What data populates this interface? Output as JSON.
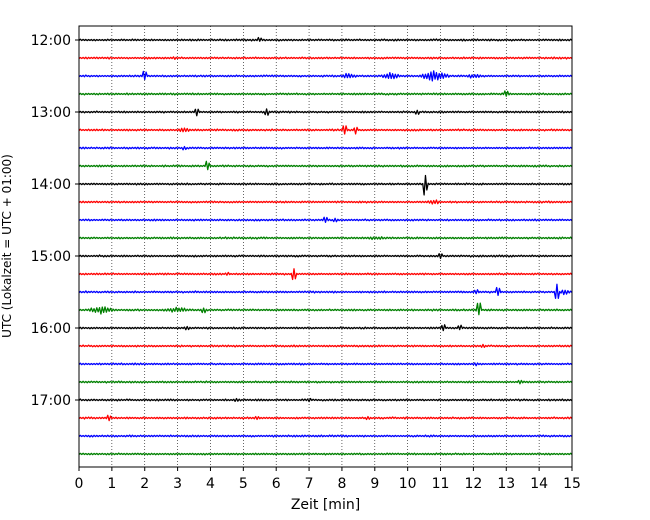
{
  "chart_data": {
    "type": "line",
    "title": "",
    "xlabel": "Zeit  [min]",
    "ylabel": "UTC (Lokalzeit = UTC + 01:00)",
    "xlim": [
      0,
      15
    ],
    "x_ticks": [
      0,
      1,
      2,
      3,
      4,
      5,
      6,
      7,
      8,
      9,
      10,
      11,
      12,
      13,
      14,
      15
    ],
    "y_tick_labels": [
      "12:00",
      "13:00",
      "14:00",
      "15:00",
      "16:00",
      "17:00"
    ],
    "grid": "vertical dotted lines at each minute",
    "trace_interval_minutes": 15,
    "color_cycle": [
      "#000000",
      "#ff0000",
      "#0000ff",
      "#008000"
    ],
    "series": [
      {
        "start": "12:00",
        "color": "black",
        "events": [
          {
            "t": 5.5,
            "amp": 0.35
          }
        ]
      },
      {
        "start": "12:15",
        "color": "red",
        "events": [
          {
            "t": 2.9,
            "amp": 0.2
          }
        ]
      },
      {
        "start": "12:30",
        "color": "blue",
        "events": [
          {
            "t": 2.0,
            "amp": 0.9
          },
          {
            "t": 8.2,
            "amp": 0.4,
            "dur": 0.8
          },
          {
            "t": 9.5,
            "amp": 0.6,
            "dur": 0.8
          },
          {
            "t": 10.8,
            "amp": 0.8,
            "dur": 1.2
          },
          {
            "t": 12.0,
            "amp": 0.35,
            "dur": 0.8
          }
        ]
      },
      {
        "start": "12:45",
        "color": "green",
        "events": [
          {
            "t": 13.0,
            "amp": 0.5
          }
        ]
      },
      {
        "start": "13:00",
        "color": "black",
        "events": [
          {
            "t": 3.6,
            "amp": 0.5
          },
          {
            "t": 5.7,
            "amp": 0.7
          },
          {
            "t": 10.3,
            "amp": 0.35
          }
        ]
      },
      {
        "start": "13:15",
        "color": "red",
        "events": [
          {
            "t": 3.2,
            "amp": 0.45,
            "dur": 0.6
          },
          {
            "t": 8.1,
            "amp": 0.9
          },
          {
            "t": 8.4,
            "amp": 0.5
          }
        ]
      },
      {
        "start": "13:30",
        "color": "blue",
        "events": [
          {
            "t": 3.2,
            "amp": 0.3
          }
        ]
      },
      {
        "start": "13:45",
        "color": "green",
        "events": [
          {
            "t": 3.9,
            "amp": 0.8
          }
        ]
      },
      {
        "start": "14:00",
        "color": "black",
        "events": [
          {
            "t": 10.55,
            "amp": 1.5
          }
        ]
      },
      {
        "start": "14:15",
        "color": "red",
        "events": [
          {
            "t": 10.8,
            "amp": 0.35,
            "dur": 0.8
          }
        ]
      },
      {
        "start": "14:30",
        "color": "blue",
        "events": [
          {
            "t": 7.5,
            "amp": 0.55
          },
          {
            "t": 7.8,
            "amp": 0.35
          }
        ]
      },
      {
        "start": "14:45",
        "color": "green",
        "events": [
          {
            "t": 9.0,
            "amp": 0.25,
            "dur": 1.2
          }
        ]
      },
      {
        "start": "15:00",
        "color": "black",
        "events": [
          {
            "t": 11.0,
            "amp": 0.4
          }
        ]
      },
      {
        "start": "15:15",
        "color": "red",
        "events": [
          {
            "t": 6.55,
            "amp": 1.2
          },
          {
            "t": 4.5,
            "amp": 0.25
          }
        ]
      },
      {
        "start": "15:30",
        "color": "blue",
        "events": [
          {
            "t": 12.1,
            "amp": 0.4
          },
          {
            "t": 12.75,
            "amp": 0.9
          },
          {
            "t": 14.55,
            "amp": 1.5
          },
          {
            "t": 14.8,
            "amp": 0.45,
            "dur": 0.5
          }
        ]
      },
      {
        "start": "15:45",
        "color": "green",
        "events": [
          {
            "t": 0.7,
            "amp": 0.55,
            "dur": 1.2
          },
          {
            "t": 3.0,
            "amp": 0.4,
            "dur": 1.0
          },
          {
            "t": 3.8,
            "amp": 0.45
          },
          {
            "t": 12.15,
            "amp": 1.1
          }
        ]
      },
      {
        "start": "16:00",
        "color": "black",
        "events": [
          {
            "t": 3.3,
            "amp": 0.35
          },
          {
            "t": 11.1,
            "amp": 0.45
          },
          {
            "t": 11.6,
            "amp": 0.4
          }
        ]
      },
      {
        "start": "16:15",
        "color": "red",
        "events": [
          {
            "t": 12.3,
            "amp": 0.3
          }
        ]
      },
      {
        "start": "16:30",
        "color": "blue",
        "events": [
          {
            "t": 12.1,
            "amp": 0.25
          }
        ]
      },
      {
        "start": "16:45",
        "color": "green",
        "events": [
          {
            "t": 13.4,
            "amp": 0.35
          }
        ]
      },
      {
        "start": "17:00",
        "color": "black",
        "events": [
          {
            "t": 4.8,
            "amp": 0.25
          },
          {
            "t": 7.0,
            "amp": 0.25
          }
        ]
      },
      {
        "start": "17:15",
        "color": "red",
        "events": [
          {
            "t": 0.9,
            "amp": 0.5
          },
          {
            "t": 5.4,
            "amp": 0.35
          },
          {
            "t": 8.8,
            "amp": 0.25
          }
        ]
      },
      {
        "start": "17:30",
        "color": "blue",
        "events": [
          {
            "t": 6.8,
            "amp": 0.15
          }
        ]
      },
      {
        "start": "17:45",
        "color": "green",
        "events": [
          {
            "t": 9.2,
            "amp": 0.1
          }
        ]
      }
    ]
  }
}
